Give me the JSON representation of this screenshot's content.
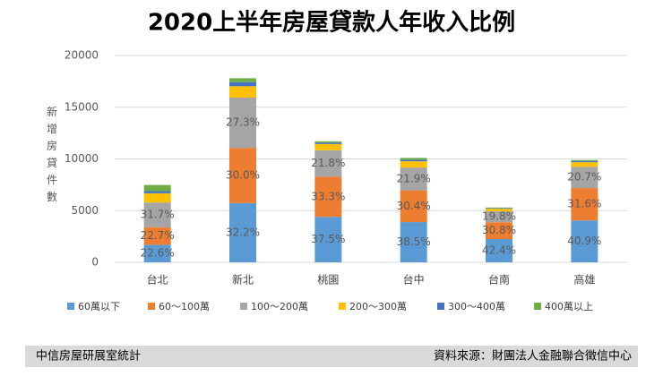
{
  "chart_data": {
    "type": "stacked-bar",
    "title": "2020上半年房屋貸款人年收入比例",
    "y_label": "新增房貸件數",
    "categories": [
      "台北",
      "新北",
      "桃園",
      "台中",
      "台南",
      "高雄"
    ],
    "ylim": [
      0,
      20000
    ],
    "yticks": [
      0,
      5000,
      10000,
      15000,
      20000
    ],
    "series": [
      {
        "name": "60萬以下",
        "color": "#5b9bd5",
        "values": [
          1700,
          5730,
          4390,
          3890,
          2250,
          4050
        ],
        "share_labels": [
          "22.6%",
          "32.2%",
          "37.5%",
          "38.5%",
          "42.4%",
          "40.9%"
        ]
      },
      {
        "name": "60～100萬",
        "color": "#ed7d31",
        "values": [
          1700,
          5340,
          3900,
          3070,
          1630,
          3130
        ],
        "share_labels": [
          "22.7%",
          "30.0%",
          "33.3%",
          "30.4%",
          "30.8%",
          "31.6%"
        ]
      },
      {
        "name": "100～200萬",
        "color": "#a5a5a5",
        "values": [
          2380,
          4860,
          2550,
          2210,
          1050,
          2050
        ],
        "share_labels": [
          "31.7%",
          "27.3%",
          "21.8%",
          "21.9%",
          "19.8%",
          "20.7%"
        ]
      },
      {
        "name": "200～300萬",
        "color": "#ffc000",
        "values": [
          900,
          1100,
          600,
          600,
          250,
          450
        ]
      },
      {
        "name": "300～400萬",
        "color": "#4472c4",
        "values": [
          200,
          400,
          130,
          150,
          50,
          120
        ]
      },
      {
        "name": "400萬以上",
        "color": "#70ad47",
        "values": [
          600,
          370,
          130,
          180,
          70,
          100
        ]
      }
    ],
    "footer_left": "中信房屋研展室統計",
    "footer_right": "資料來源：財團法人金融聯合徵信中心"
  }
}
